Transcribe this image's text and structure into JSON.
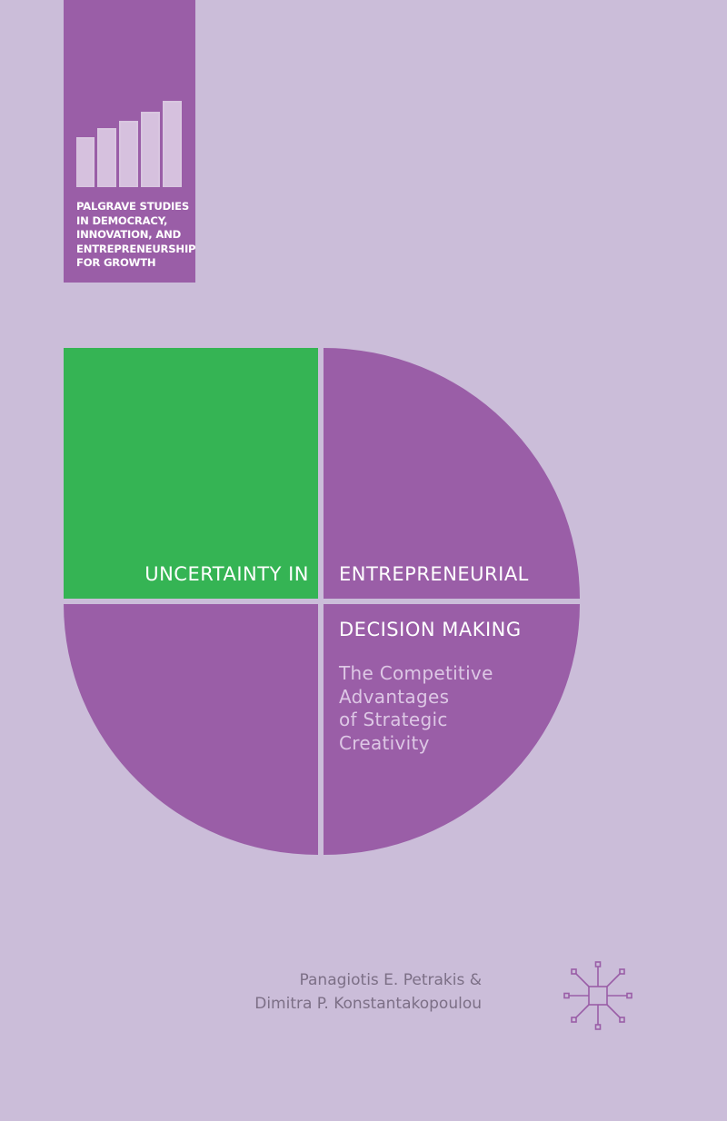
{
  "series": {
    "lines": [
      "PALGRAVE STUDIES",
      "IN DEMOCRACY,",
      "INNOVATION, AND",
      "ENTREPRENEURSHIP",
      "FOR GROWTH"
    ],
    "icon": "rising-bars-icon"
  },
  "title": {
    "left": "UNCERTAINTY IN",
    "right_line1": "ENTREPRENEURIAL",
    "right_line2": "DECISION MAKING"
  },
  "subtitle": {
    "lines": [
      "The Competitive",
      "Advantages",
      "of Strategic",
      "Creativity"
    ]
  },
  "authors": [
    "Panagiotis E. Petrakis &",
    "Dimitra P. Konstantakopoulou"
  ],
  "publisher": {
    "icon": "palgrave-macmillan-logo-icon"
  },
  "colors": {
    "background": "#cbbdd9",
    "purple": "#9a5ea7",
    "green": "#35b454",
    "white": "#ffffff",
    "subtitle": "#ddc7e5",
    "author": "#7c6f86"
  }
}
